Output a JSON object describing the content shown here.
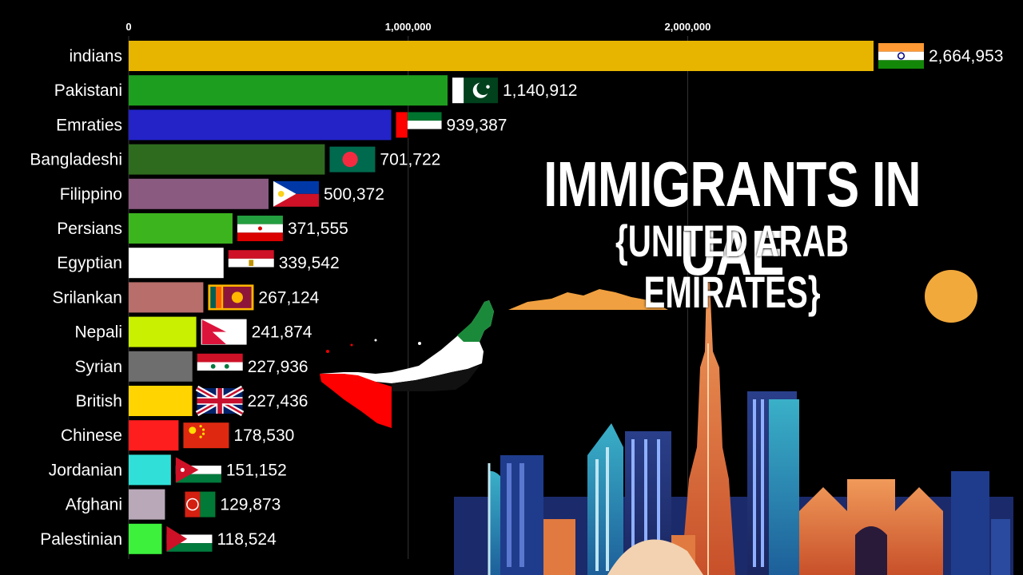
{
  "headline": {
    "title": "IMMIGRANTS IN UAE",
    "subtitle": "{UNITED ARAB EMIRATES}"
  },
  "chart_data": {
    "type": "bar",
    "orientation": "horizontal",
    "xlim": [
      0,
      2700000
    ],
    "ticks": [
      {
        "value": 0,
        "label": "0"
      },
      {
        "value": 1000000,
        "label": "1,000,000"
      },
      {
        "value": 2000000,
        "label": "2,000,000"
      }
    ],
    "grid": true,
    "categories": [
      "indians",
      "Pakistani",
      "Emraties",
      "Bangladeshi",
      "Filippino",
      "Persians",
      "Egyptian",
      "Srilankan",
      "Nepali",
      "Syrian",
      "British",
      "Chinese",
      "Jordanian",
      "Afghani",
      "Palestinian"
    ],
    "values": [
      2664953,
      1140912,
      939387,
      701722,
      500372,
      371555,
      339542,
      267124,
      241874,
      227936,
      227436,
      178530,
      151152,
      129873,
      118524
    ],
    "value_labels": [
      "2,664,953",
      "1,140,912",
      "939,387",
      "701,722",
      "500,372",
      "371,555",
      "339,542",
      "267,124",
      "241,874",
      "227,936",
      "227,436",
      "178,530",
      "151,152",
      "129,873",
      "118,524"
    ],
    "colors": [
      "#E7B400",
      "#1E9E1E",
      "#2323C8",
      "#2E6B1F",
      "#8A5A80",
      "#3CB41E",
      "#FFFFFF",
      "#B86E6A",
      "#C8F000",
      "#6E6E6E",
      "#FFD400",
      "#FF1E1E",
      "#30E0D8",
      "#B8A8B8",
      "#3CF03C"
    ],
    "flags": [
      "india-flag",
      "pakistan-flag",
      "uae-flag",
      "bangladesh-flag",
      "philippines-flag",
      "iran-flag",
      "egypt-flag",
      "sri-lanka-flag",
      "nepal-flag",
      "syria-flag",
      "uk-flag",
      "china-flag",
      "jordan-flag",
      "afghanistan-flag",
      "palestine-flag"
    ]
  },
  "illustration": {
    "map_icon": "uae-map-flag-icon",
    "skyline_icon": "dubai-skyline-icon",
    "sun_icon": "sun-icon",
    "cloud_icon": "cloud-icon"
  }
}
